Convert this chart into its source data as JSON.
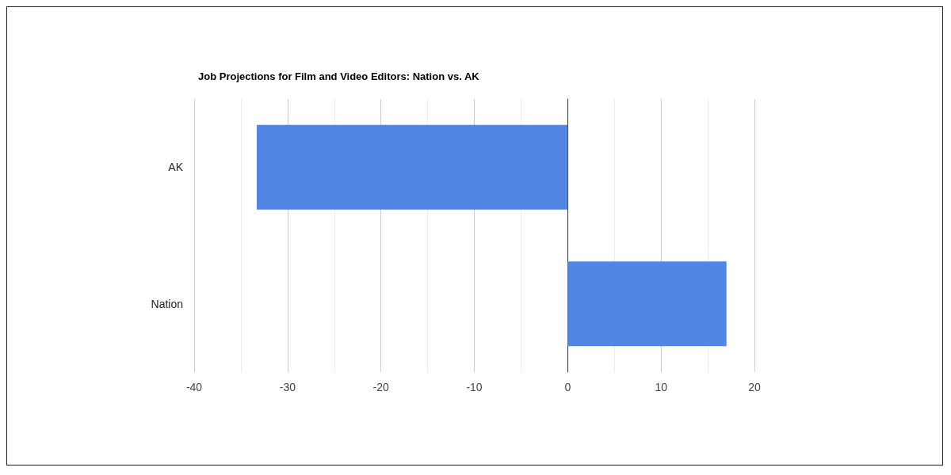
{
  "chart_data": {
    "type": "bar",
    "orientation": "horizontal",
    "title": "Job Projections for Film and Video Editors: Nation vs. AK",
    "categories": [
      "AK",
      "Nation"
    ],
    "values": [
      -33.3,
      17
    ],
    "color": "#5386e4",
    "xlim": [
      -40,
      20
    ],
    "xticks": [
      -40,
      -30,
      -20,
      -10,
      0,
      10,
      20
    ],
    "grid": "x"
  }
}
